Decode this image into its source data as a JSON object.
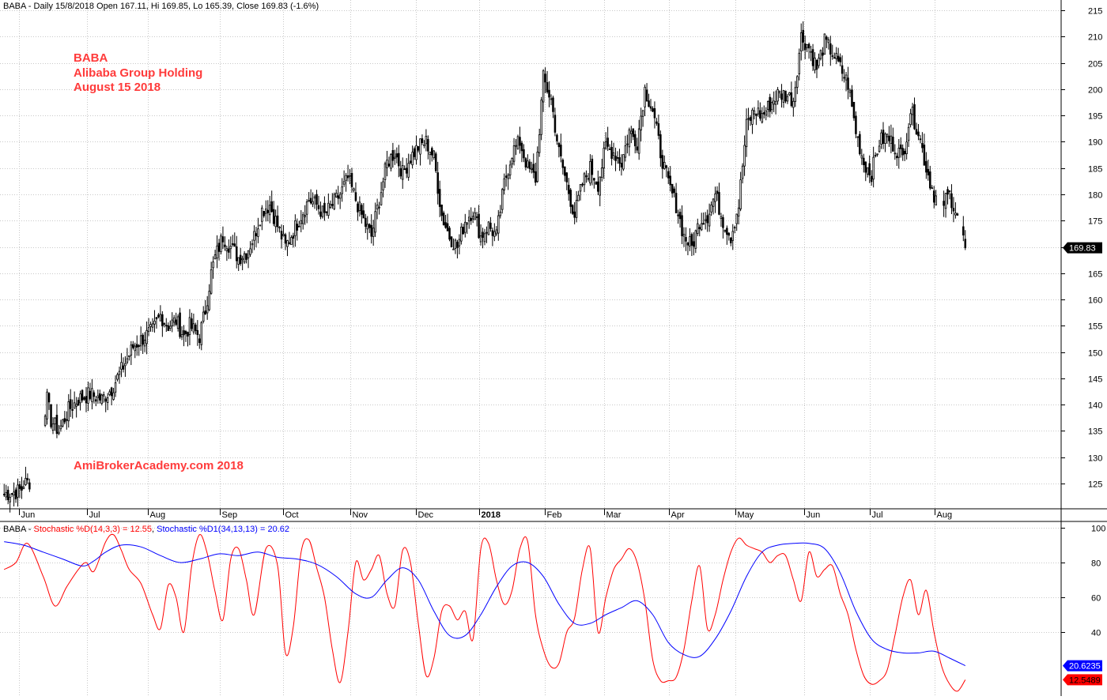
{
  "chart_data": [
    {
      "type": "candlestick",
      "header": "BABA - Daily 15/8/2018 Open 167.11, Hi 169.85, Lo 165.39, Close 169.83 (-1.6%)",
      "annotations": [
        "BABA",
        "Alibaba Group Holding",
        "August 15 2018",
        "AmiBrokerAcademy.com  2018"
      ],
      "annotation_color": "#ff3b3b",
      "ylim": [
        120,
        216
      ],
      "y_ticks": [
        125,
        130,
        135,
        140,
        145,
        150,
        155,
        160,
        165,
        170,
        175,
        180,
        185,
        190,
        195,
        200,
        205,
        210,
        215
      ],
      "x_labels": [
        "Jun",
        "Jul",
        "Aug",
        "Sep",
        "Oct",
        "Nov",
        "Dec",
        "2018",
        "Feb",
        "Mar",
        "Apr",
        "May",
        "Jun",
        "Jul",
        "Aug"
      ],
      "grid": true,
      "last_price": 169.83,
      "last_price_label": "169.83",
      "close_path": [
        [
          0,
          123
        ],
        [
          7,
          123.5
        ],
        [
          9,
          124
        ],
        [
          10,
          125
        ],
        [
          13,
          125.3
        ],
        [
          22,
          141
        ],
        [
          24,
          137
        ],
        [
          28,
          135
        ],
        [
          33,
          139
        ],
        [
          38,
          141
        ],
        [
          44,
          142
        ],
        [
          50,
          141
        ],
        [
          55,
          143
        ],
        [
          62,
          148
        ],
        [
          66,
          151
        ],
        [
          72,
          153
        ],
        [
          76,
          154
        ],
        [
          80,
          157
        ],
        [
          84,
          155
        ],
        [
          88,
          156
        ],
        [
          92,
          153
        ],
        [
          95,
          155
        ],
        [
          100,
          153
        ],
        [
          103,
          158
        ],
        [
          106,
          165
        ],
        [
          108,
          168
        ],
        [
          112,
          172
        ],
        [
          116,
          170
        ],
        [
          120,
          168
        ],
        [
          124,
          169
        ],
        [
          128,
          172
        ],
        [
          132,
          177
        ],
        [
          136,
          178
        ],
        [
          140,
          174
        ],
        [
          144,
          170
        ],
        [
          148,
          173
        ],
        [
          152,
          176
        ],
        [
          156,
          179
        ],
        [
          160,
          178
        ],
        [
          164,
          176
        ],
        [
          168,
          178
        ],
        [
          172,
          180
        ],
        [
          176,
          183
        ],
        [
          180,
          179
        ],
        [
          184,
          175
        ],
        [
          188,
          172
        ],
        [
          192,
          179
        ],
        [
          196,
          186
        ],
        [
          200,
          188
        ],
        [
          204,
          184
        ],
        [
          208,
          187
        ],
        [
          212,
          189
        ],
        [
          216,
          190
        ],
        [
          220,
          187
        ],
        [
          224,
          176
        ],
        [
          228,
          172
        ],
        [
          232,
          170
        ],
        [
          236,
          175
        ],
        [
          240,
          177
        ],
        [
          244,
          172
        ],
        [
          248,
          174
        ],
        [
          252,
          172
        ],
        [
          256,
          182
        ],
        [
          260,
          188
        ],
        [
          264,
          190
        ],
        [
          268,
          185
        ],
        [
          272,
          183
        ],
        [
          276,
          202
        ],
        [
          280,
          198
        ],
        [
          284,
          188
        ],
        [
          288,
          182
        ],
        [
          292,
          176
        ],
        [
          296,
          182
        ],
        [
          300,
          185
        ],
        [
          304,
          182
        ],
        [
          308,
          189
        ],
        [
          312,
          188
        ],
        [
          316,
          186
        ],
        [
          320,
          192
        ],
        [
          324,
          190
        ],
        [
          328,
          200
        ],
        [
          332,
          196
        ],
        [
          336,
          188
        ],
        [
          340,
          182
        ],
        [
          344,
          178
        ],
        [
          348,
          172
        ],
        [
          352,
          170
        ],
        [
          356,
          175
        ],
        [
          360,
          176
        ],
        [
          364,
          180
        ],
        [
          368,
          175
        ],
        [
          372,
          172
        ],
        [
          376,
          178
        ],
        [
          380,
          193
        ],
        [
          384,
          196
        ],
        [
          388,
          195
        ],
        [
          392,
          197
        ],
        [
          396,
          199
        ],
        [
          400,
          199
        ],
        [
          404,
          198
        ],
        [
          408,
          210
        ],
        [
          412,
          208
        ],
        [
          416,
          204
        ],
        [
          420,
          209
        ],
        [
          424,
          207
        ],
        [
          428,
          204
        ],
        [
          432,
          201
        ],
        [
          436,
          192
        ],
        [
          440,
          186
        ],
        [
          444,
          184
        ],
        [
          448,
          190
        ],
        [
          452,
          191
        ],
        [
          456,
          189
        ],
        [
          460,
          187
        ],
        [
          464,
          196
        ],
        [
          468,
          192
        ],
        [
          472,
          185
        ],
        [
          476,
          180
        ],
        [
          480,
          178
        ],
        [
          484,
          180
        ],
        [
          488,
          176
        ],
        [
          492,
          169.83
        ]
      ]
    },
    {
      "type": "line",
      "header_prefix": "BABA - ",
      "series": [
        {
          "name": "Stochastic %D(14,3,3)",
          "label": "Stochastic %D(14,3,3) = 12.55",
          "color": "#ff0000",
          "last_value": 12.55,
          "last_label": "12.5489",
          "points": [
            [
              0,
              76
            ],
            [
              6,
              80
            ],
            [
              12,
              91
            ],
            [
              20,
              72
            ],
            [
              26,
              55
            ],
            [
              32,
              66
            ],
            [
              38,
              76
            ],
            [
              42,
              80
            ],
            [
              46,
              75
            ],
            [
              52,
              92
            ],
            [
              56,
              96
            ],
            [
              60,
              87
            ],
            [
              64,
              76
            ],
            [
              70,
              68
            ],
            [
              76,
              50
            ],
            [
              80,
              42
            ],
            [
              84,
              67
            ],
            [
              88,
              60
            ],
            [
              92,
              40
            ],
            [
              96,
              78
            ],
            [
              100,
              96
            ],
            [
              104,
              85
            ],
            [
              108,
              63
            ],
            [
              112,
              47
            ],
            [
              116,
              82
            ],
            [
              120,
              88
            ],
            [
              124,
              70
            ],
            [
              128,
              50
            ],
            [
              134,
              88
            ],
            [
              140,
              78
            ],
            [
              144,
              28
            ],
            [
              148,
              43
            ],
            [
              152,
              86
            ],
            [
              156,
              93
            ],
            [
              160,
              77
            ],
            [
              164,
              60
            ],
            [
              168,
              30
            ],
            [
              172,
              11
            ],
            [
              176,
              40
            ],
            [
              180,
              80
            ],
            [
              184,
              70
            ],
            [
              188,
              76
            ],
            [
              192,
              84
            ],
            [
              196,
              62
            ],
            [
              200,
              55
            ],
            [
              204,
              87
            ],
            [
              208,
              80
            ],
            [
              212,
              45
            ],
            [
              216,
              15
            ],
            [
              220,
              25
            ],
            [
              224,
              52
            ],
            [
              228,
              55
            ],
            [
              232,
              47
            ],
            [
              236,
              52
            ],
            [
              240,
              36
            ],
            [
              244,
              88
            ],
            [
              248,
              91
            ],
            [
              252,
              70
            ],
            [
              256,
              56
            ],
            [
              260,
              64
            ],
            [
              264,
              88
            ],
            [
              268,
              92
            ],
            [
              272,
              50
            ],
            [
              276,
              30
            ],
            [
              280,
              20
            ],
            [
              284,
              22
            ],
            [
              288,
              40
            ],
            [
              292,
              48
            ],
            [
              296,
              76
            ],
            [
              300,
              88
            ],
            [
              304,
              40
            ],
            [
              308,
              60
            ],
            [
              312,
              76
            ],
            [
              316,
              82
            ],
            [
              320,
              88
            ],
            [
              324,
              80
            ],
            [
              328,
              58
            ],
            [
              332,
              24
            ],
            [
              336,
              12
            ],
            [
              340,
              12
            ],
            [
              344,
              14
            ],
            [
              348,
              30
            ],
            [
              352,
              58
            ],
            [
              356,
              78
            ],
            [
              360,
              42
            ],
            [
              364,
              50
            ],
            [
              368,
              70
            ],
            [
              372,
              86
            ],
            [
              376,
              94
            ],
            [
              380,
              90
            ],
            [
              384,
              88
            ],
            [
              388,
              86
            ],
            [
              392,
              80
            ],
            [
              396,
              84
            ],
            [
              400,
              84
            ],
            [
              404,
              70
            ],
            [
              408,
              58
            ],
            [
              412,
              86
            ],
            [
              416,
              72
            ],
            [
              420,
              76
            ],
            [
              424,
              78
            ],
            [
              428,
              62
            ],
            [
              432,
              50
            ],
            [
              436,
              30
            ],
            [
              440,
              15
            ],
            [
              444,
              10
            ],
            [
              448,
              12
            ],
            [
              452,
              18
            ],
            [
              456,
              38
            ],
            [
              460,
              60
            ],
            [
              464,
              70
            ],
            [
              468,
              50
            ],
            [
              472,
              64
            ],
            [
              476,
              40
            ],
            [
              480,
              20
            ],
            [
              484,
              10
            ],
            [
              488,
              6
            ],
            [
              492,
              12.55
            ]
          ]
        },
        {
          "name": "Stochastic %D1(34,13,13)",
          "label": "Stochastic %D1(34,13,13) = 20.62",
          "color": "#0000ff",
          "last_value": 20.62,
          "last_label": "20.6235",
          "points": [
            [
              0,
              92
            ],
            [
              10,
              90
            ],
            [
              20,
              86
            ],
            [
              30,
              82
            ],
            [
              40,
              78
            ],
            [
              46,
              81
            ],
            [
              52,
              86
            ],
            [
              60,
              90
            ],
            [
              70,
              89
            ],
            [
              80,
              84
            ],
            [
              90,
              80
            ],
            [
              100,
              82
            ],
            [
              110,
              85
            ],
            [
              120,
              84
            ],
            [
              130,
              86
            ],
            [
              140,
              83
            ],
            [
              150,
              82
            ],
            [
              160,
              79
            ],
            [
              170,
              72
            ],
            [
              180,
              62
            ],
            [
              188,
              60
            ],
            [
              196,
              70
            ],
            [
              204,
              77
            ],
            [
              212,
              70
            ],
            [
              220,
              52
            ],
            [
              228,
              38
            ],
            [
              236,
              38
            ],
            [
              244,
              50
            ],
            [
              252,
              66
            ],
            [
              260,
              78
            ],
            [
              268,
              80
            ],
            [
              276,
              72
            ],
            [
              284,
              56
            ],
            [
              292,
              45
            ],
            [
              300,
              45
            ],
            [
              308,
              50
            ],
            [
              316,
              54
            ],
            [
              324,
              58
            ],
            [
              332,
              50
            ],
            [
              340,
              34
            ],
            [
              348,
              27
            ],
            [
              356,
              26
            ],
            [
              364,
              36
            ],
            [
              372,
              52
            ],
            [
              380,
              72
            ],
            [
              388,
              86
            ],
            [
              396,
              90
            ],
            [
              404,
              91
            ],
            [
              412,
              91
            ],
            [
              420,
              88
            ],
            [
              428,
              74
            ],
            [
              436,
              52
            ],
            [
              444,
              36
            ],
            [
              452,
              30
            ],
            [
              460,
              28
            ],
            [
              468,
              28
            ],
            [
              476,
              29
            ],
            [
              484,
              25
            ],
            [
              492,
              20.62
            ]
          ]
        }
      ],
      "ylim": [
        0,
        104
      ],
      "y_ticks": [
        40,
        60,
        80,
        100
      ],
      "grid": true
    }
  ]
}
